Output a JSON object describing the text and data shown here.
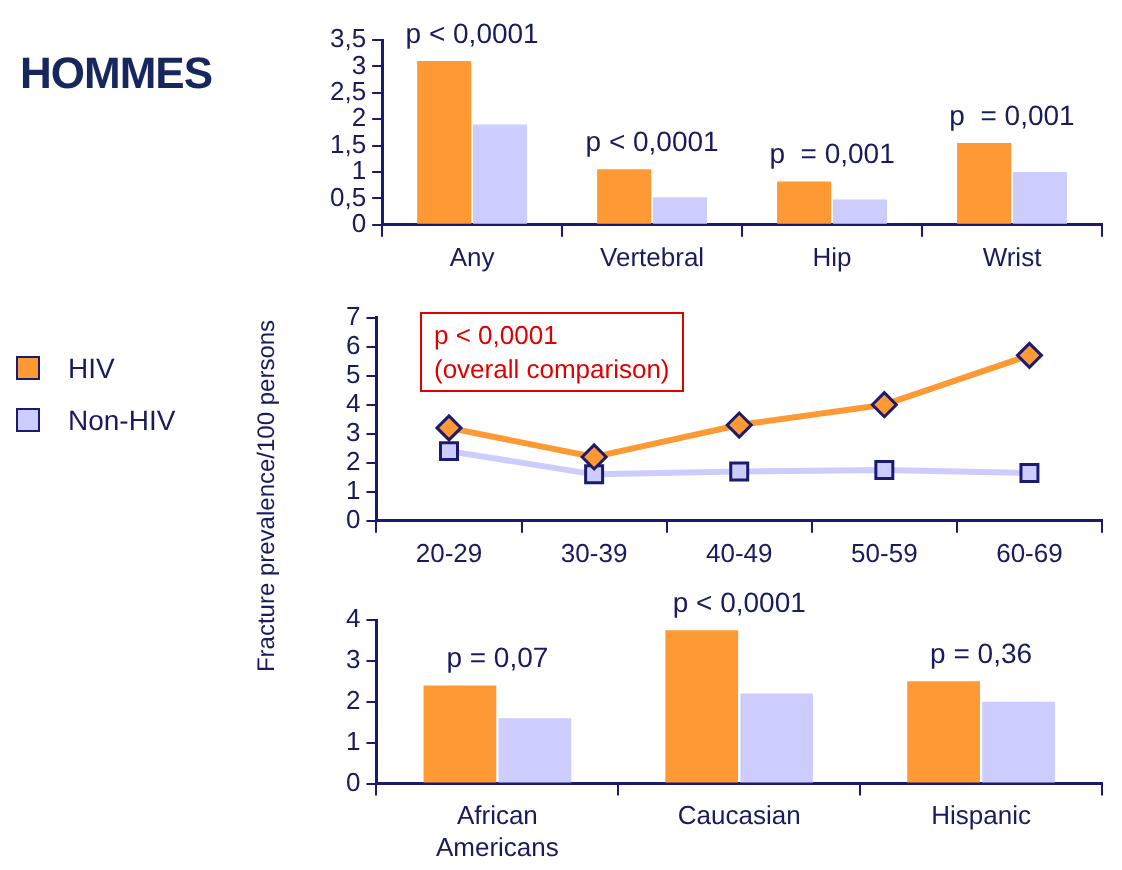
{
  "chart_data": [
    {
      "type": "bar",
      "title": "HOMMES",
      "categories": [
        "Any",
        "Vertebral",
        "Hip",
        "Wrist"
      ],
      "series": [
        {
          "color": "#ff9933",
          "values": [
            3.1,
            1.05,
            0.82,
            1.55
          ]
        },
        {
          "color": "#ccccff",
          "values": [
            1.9,
            0.52,
            0.48,
            1.0
          ]
        }
      ],
      "ylim": [
        0,
        3.5
      ],
      "yticks": [
        0,
        {
          "value": 0.5,
          "label": "0,5"
        },
        1,
        {
          "value": 1.5,
          "label": "1,5"
        },
        2,
        {
          "value": 2.5,
          "label": "2,5"
        },
        3,
        {
          "value": 3.5,
          "label": "3,5"
        }
      ],
      "annotations": [
        "p < 0,0001",
        "p < 0,0001",
        "p  = 0,001",
        "p  = 0,001"
      ]
    },
    {
      "type": "line",
      "ylabel": "Fracture prevalence/100 persons",
      "categories": [
        "20-29",
        "30-39",
        "40-49",
        "50-59",
        "60-69"
      ],
      "series": [
        {
          "name": "HIV",
          "color": "#ff9933",
          "marker": "diamond",
          "values": [
            3.2,
            2.2,
            3.3,
            4.0,
            5.7
          ]
        },
        {
          "name": "Non-HIV",
          "color": "#ccccff",
          "marker": "square",
          "values": [
            2.4,
            1.6,
            1.7,
            1.75,
            1.65
          ]
        }
      ],
      "ylim": [
        0,
        7
      ],
      "yticks": [
        0,
        1,
        2,
        3,
        4,
        5,
        6,
        7
      ],
      "legend": "left",
      "annotations": [
        "p < 0,0001\n(overall comparison)"
      ]
    },
    {
      "type": "bar",
      "categories": [
        "African Americans",
        "Caucasian",
        "Hispanic"
      ],
      "series": [
        {
          "color": "#ff9933",
          "values": [
            2.4,
            3.75,
            2.5
          ]
        },
        {
          "color": "#ccccff",
          "values": [
            1.6,
            2.2,
            2.0
          ]
        }
      ],
      "ylim": [
        0,
        4
      ],
      "yticks": [
        0,
        1,
        2,
        3,
        4
      ],
      "annotations": [
        "p = 0,07",
        "p < 0,0001",
        "p = 0,36"
      ]
    }
  ]
}
